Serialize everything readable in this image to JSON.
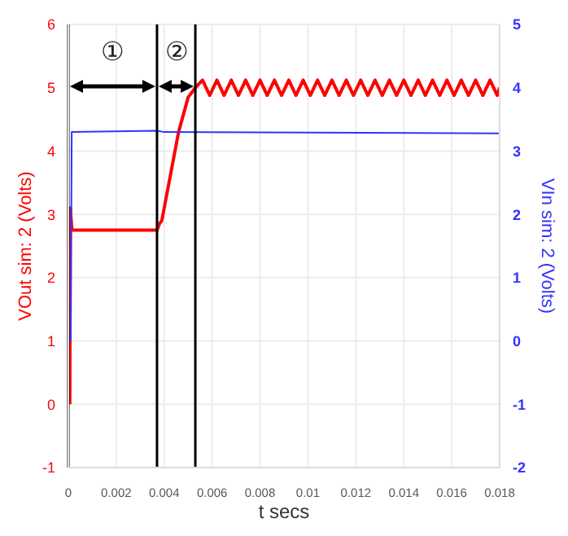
{
  "chart_data": {
    "type": "line",
    "xlabel": "t secs",
    "ylabel": "VOut sim:  2 (Volts)",
    "y2label": "VIn sim:  2 (Volts)",
    "series": [
      {
        "color": "#ff0000",
        "x": [
          6e-05,
          8e-05,
          0.00015,
          0.0037,
          0.0038,
          0.0039,
          0.0046,
          0.005,
          0.0053,
          0.0056,
          0.0059,
          0.0062,
          0.0065,
          0.0068,
          0.0071,
          0.0074,
          0.0077,
          0.008,
          0.0083,
          0.0086,
          0.0089,
          0.0092,
          0.0095,
          0.0098,
          0.0101,
          0.0104,
          0.0107,
          0.011,
          0.0113,
          0.0116,
          0.0119,
          0.0122,
          0.0125,
          0.0128,
          0.0131,
          0.0134,
          0.0137,
          0.014,
          0.0143,
          0.0146,
          0.0149,
          0.0152,
          0.0155,
          0.0158,
          0.0161,
          0.0164,
          0.0167,
          0.017,
          0.0173,
          0.0176,
          0.0179,
          0.018
        ],
        "values": [
          0,
          3.1,
          2.75,
          2.75,
          2.85,
          2.9,
          4.3,
          4.85,
          5.0,
          5.12,
          4.88,
          5.12,
          4.88,
          5.12,
          4.88,
          5.12,
          4.88,
          5.12,
          4.88,
          5.12,
          4.88,
          5.12,
          4.88,
          5.12,
          4.88,
          5.12,
          4.88,
          5.12,
          4.88,
          5.12,
          4.88,
          5.12,
          4.88,
          5.12,
          4.88,
          5.12,
          4.88,
          5.12,
          4.88,
          5.12,
          4.88,
          5.12,
          4.88,
          5.12,
          4.88,
          5.12,
          4.88,
          5.12,
          4.88,
          5.12,
          4.88,
          5.0
        ]
      },
      {
        "color": "#3333ff",
        "axis": "y2",
        "x": [
          0.0001,
          0.00014,
          0.0037,
          0.004,
          0.018
        ],
        "values": [
          0,
          3.3,
          3.32,
          3.3,
          3.28
        ]
      }
    ],
    "xlim": [
      0,
      0.018
    ],
    "xticks": [
      0,
      0.002,
      0.004,
      0.006,
      0.008,
      0.01,
      0.012,
      0.014,
      0.016,
      0.018
    ],
    "ylim": [
      -1,
      6
    ],
    "yticks": [
      -1,
      0,
      1,
      2,
      3,
      4,
      5,
      6
    ],
    "y2lim": [
      -2,
      5
    ],
    "y2ticks": [
      -2,
      -1,
      0,
      1,
      2,
      3,
      4,
      5
    ],
    "ref_lines": [
      {
        "axis": "x",
        "value": 0,
        "color": "#000000"
      },
      {
        "axis": "x",
        "value": 0.0037,
        "color": "#000000"
      },
      {
        "axis": "x",
        "value": 0.0053,
        "color": "#000000"
      }
    ],
    "annotations": [
      "①",
      "②"
    ],
    "grid": true,
    "marker": "none",
    "line_style": "solid"
  }
}
